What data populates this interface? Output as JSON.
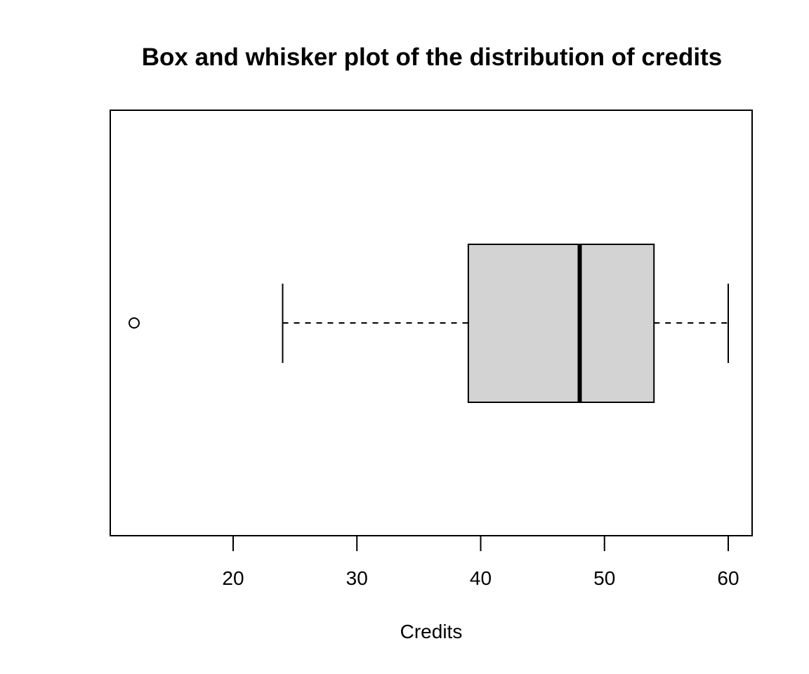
{
  "chart_data": {
    "type": "boxplot",
    "orientation": "horizontal",
    "title": "Box and whisker plot of the distribution of credits",
    "xlabel": "Credits",
    "ylabel": "",
    "xlim": [
      10,
      62
    ],
    "ticks": [
      20,
      30,
      40,
      50,
      60
    ],
    "tick_labels": [
      "20",
      "30",
      "40",
      "50",
      "60"
    ],
    "grid": false,
    "box": {
      "whisker_low": 24,
      "q1": 39,
      "median": 48,
      "q3": 54,
      "whisker_high": 60
    },
    "outliers": [
      12
    ],
    "colors": {
      "box_fill": "#d3d3d3",
      "stroke": "#000000"
    }
  }
}
